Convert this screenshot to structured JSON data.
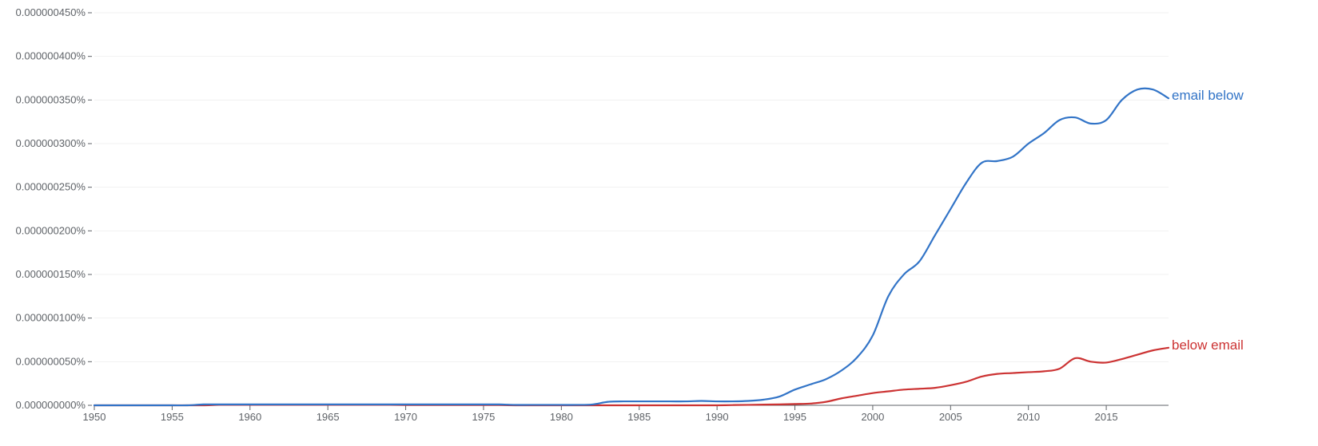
{
  "chart_data": {
    "type": "line",
    "title": "",
    "xlabel": "",
    "ylabel": "",
    "xlim": [
      1950,
      2019
    ],
    "ylim": [
      0,
      4.5e-09
    ],
    "grid": true,
    "x_ticks": [
      1950,
      1955,
      1960,
      1965,
      1970,
      1975,
      1980,
      1985,
      1990,
      1995,
      2000,
      2005,
      2010,
      2015
    ],
    "x_tick_labels": [
      "1950",
      "1955",
      "1960",
      "1965",
      "1970",
      "1975",
      "1980",
      "1985",
      "1990",
      "1995",
      "2000",
      "2005",
      "2010",
      "2015"
    ],
    "y_ticks": [
      0,
      5e-10,
      1e-09,
      1.5e-09,
      2e-09,
      2.5e-09,
      3e-09,
      3.5e-09,
      4e-09,
      4.5e-09
    ],
    "y_tick_labels": [
      "0.000000000%",
      "0.000000050%",
      "0.000000100%",
      "0.000000150%",
      "0.000000200%",
      "0.000000250%",
      "0.000000300%",
      "0.000000350%",
      "0.000000400%",
      "0.000000450%"
    ],
    "x": [
      1950,
      1951,
      1952,
      1953,
      1954,
      1955,
      1956,
      1957,
      1958,
      1959,
      1960,
      1961,
      1962,
      1963,
      1964,
      1965,
      1966,
      1967,
      1968,
      1969,
      1970,
      1971,
      1972,
      1973,
      1974,
      1975,
      1976,
      1977,
      1978,
      1979,
      1980,
      1981,
      1982,
      1983,
      1984,
      1985,
      1986,
      1987,
      1988,
      1989,
      1990,
      1991,
      1992,
      1993,
      1994,
      1995,
      1996,
      1997,
      1998,
      1999,
      2000,
      2001,
      2002,
      2003,
      2004,
      2005,
      2006,
      2007,
      2008,
      2009,
      2010,
      2011,
      2012,
      2013,
      2014,
      2015,
      2016,
      2017,
      2018,
      2019
    ],
    "series": [
      {
        "name": "email below",
        "color": "#3274c7",
        "values": [
          0,
          0,
          0,
          0,
          0,
          0,
          0,
          1e-11,
          1e-11,
          1e-11,
          1e-11,
          1e-11,
          1e-11,
          1e-11,
          1e-11,
          1e-11,
          1e-11,
          1e-11,
          1e-11,
          1e-11,
          1e-11,
          1e-11,
          1e-11,
          1e-11,
          1e-11,
          1e-11,
          1e-11,
          5e-12,
          5e-12,
          5e-12,
          5e-12,
          5e-12,
          1e-11,
          4e-11,
          4.5e-11,
          4.5e-11,
          4.5e-11,
          4.5e-11,
          4.5e-11,
          5e-11,
          4.5e-11,
          4.5e-11,
          5e-11,
          6.5e-11,
          1e-10,
          1.8e-10,
          2.4e-10,
          3e-10,
          4e-10,
          5.5e-10,
          8e-10,
          1.25e-09,
          1.5e-09,
          1.65e-09,
          1.95e-09,
          2.25e-09,
          2.55e-09,
          2.78e-09,
          2.8e-09,
          2.85e-09,
          3e-09,
          3.12e-09,
          3.27e-09,
          3.3e-09,
          3.23e-09,
          3.27e-09,
          3.5e-09,
          3.62e-09,
          3.62e-09,
          3.52e-09
        ]
      },
      {
        "name": "below email",
        "color": "#cc3333",
        "values": [
          0,
          0,
          0,
          0,
          0,
          0,
          0,
          0,
          5e-12,
          5e-12,
          5e-12,
          5e-12,
          5e-12,
          5e-12,
          5e-12,
          5e-12,
          5e-12,
          5e-12,
          5e-12,
          5e-12,
          3e-12,
          3e-12,
          3e-12,
          3e-12,
          3e-12,
          3e-12,
          3e-12,
          0,
          0,
          0,
          0,
          0,
          0,
          0,
          0,
          0,
          0,
          0,
          0,
          0,
          0,
          3e-12,
          5e-12,
          8e-12,
          1e-11,
          1.5e-11,
          2e-11,
          4e-11,
          8e-11,
          1.1e-10,
          1.4e-10,
          1.6e-10,
          1.8e-10,
          1.9e-10,
          2e-10,
          2.3e-10,
          2.7e-10,
          3.3e-10,
          3.6e-10,
          3.7e-10,
          3.8e-10,
          3.9e-10,
          4.2e-10,
          5.4e-10,
          5e-10,
          4.9e-10,
          5.3e-10,
          5.8e-10,
          6.3e-10,
          6.6e-10
        ]
      }
    ]
  }
}
